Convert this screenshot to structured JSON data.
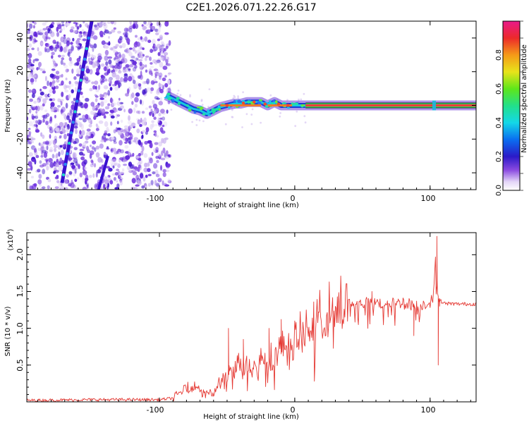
{
  "title": "C2E1.2026.071.22.26.G17",
  "chart_data": [
    {
      "type": "heatmap",
      "xlabel": "Height of straight line (km)",
      "ylabel": "Frequency (Hz)",
      "xlim": [
        -198,
        134
      ],
      "ylim": [
        -50,
        50
      ],
      "xticks": [
        -100,
        0,
        100
      ],
      "xtick_labels": [
        "-100",
        "0",
        "100"
      ],
      "yticks": [
        -40,
        -20,
        0,
        20,
        40
      ],
      "ytick_labels": [
        "-40",
        "-20",
        "0",
        "20",
        "40"
      ],
      "colorbar": {
        "label": "Normalized spectral amplitude",
        "range": [
          0,
          1
        ],
        "ticks": [
          0.0,
          0.2,
          0.4,
          0.6,
          0.8
        ],
        "tick_labels": [
          "0.0",
          "0.2",
          "0.4",
          "0.6",
          "0.8"
        ]
      },
      "traces": [
        {
          "name": "steep diagonal trace",
          "x": [
            -172,
            -150
          ],
          "y": [
            -46,
            50
          ]
        },
        {
          "name": "secondary diagonal trace",
          "x": [
            -145,
            -138
          ],
          "y": [
            -50,
            -30
          ]
        },
        {
          "name": "main signal (frequency vs height)",
          "x": [
            -95,
            -90,
            -85,
            -80,
            -75,
            -70,
            -65,
            -60,
            -55,
            -50,
            -45,
            -40,
            -35,
            -30,
            -25,
            -20,
            -15,
            -10,
            -5,
            0,
            5,
            10,
            134
          ],
          "y": [
            6,
            4,
            2,
            0,
            -2,
            -3,
            -5,
            -3,
            -1,
            0,
            1,
            1,
            2,
            2,
            2,
            0,
            2,
            0,
            0,
            0,
            0,
            0,
            0
          ]
        }
      ]
    },
    {
      "type": "line",
      "xlabel": "Height of straight line (km)",
      "ylabel": "SNR (10 * v/v)",
      "y_multiplier": "(x10",
      "y_multiplier_exp": "4",
      "xlim": [
        -198,
        134
      ],
      "ylim": [
        0,
        2.3
      ],
      "xticks": [
        -100,
        0,
        100
      ],
      "xtick_labels": [
        "-100",
        "0",
        "100"
      ],
      "yticks": [
        0.5,
        1.0,
        1.5,
        2.0
      ],
      "ytick_labels": [
        "0.5",
        "1.0",
        "1.5",
        "2.0"
      ],
      "series": [
        {
          "name": "SNR",
          "color": "#e53a34",
          "x": [
            -198,
            -150,
            -100,
            -90,
            -85,
            -80,
            -75,
            -70,
            -65,
            -60,
            -55,
            -50,
            -45,
            -40,
            -35,
            -30,
            -25,
            -20,
            -15,
            -10,
            -5,
            0,
            5,
            10,
            15,
            20,
            25,
            30,
            35,
            40,
            45,
            50,
            55,
            60,
            65,
            70,
            75,
            80,
            85,
            90,
            95,
            100,
            102,
            104,
            106,
            110,
            120,
            134
          ],
          "y": [
            0.02,
            0.03,
            0.03,
            0.05,
            0.12,
            0.2,
            0.22,
            0.18,
            0.15,
            0.1,
            0.3,
            0.35,
            0.45,
            0.55,
            0.5,
            0.55,
            0.6,
            0.6,
            0.65,
            0.75,
            0.75,
            0.85,
            0.95,
            1.05,
            1.12,
            1.2,
            1.25,
            1.3,
            1.33,
            1.33,
            1.33,
            1.34,
            1.35,
            1.35,
            1.34,
            1.35,
            1.33,
            1.36,
            1.33,
            1.3,
            1.33,
            1.35,
            1.4,
            1.9,
            1.4,
            1.34,
            1.33,
            1.33
          ]
        },
        {
          "name": "SNR spikes",
          "color": "#e53a34",
          "x": [
            -49,
            -38,
            -19,
            -10,
            57,
            88,
            105,
            106,
            107
          ],
          "y": [
            1.0,
            0.85,
            1.0,
            1.12,
            1.5,
            0.9,
            2.25,
            0.5,
            1.3
          ]
        }
      ]
    }
  ]
}
